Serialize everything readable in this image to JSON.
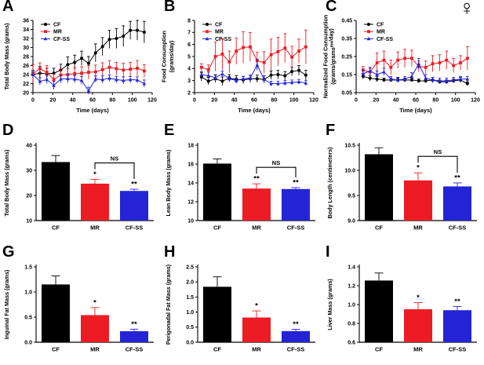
{
  "figure": {
    "sex_symbol": "♀",
    "background": "#ffffff",
    "colors": {
      "cf": "#000000",
      "mr": "#ed1c24",
      "cfss": "#2424d6"
    },
    "group_labels": [
      "CF",
      "MR",
      "CF-SS"
    ]
  },
  "chart_data": [
    {
      "letter": "A",
      "type": "line",
      "name": "total-body-mass-timecourse",
      "xlabel": "Time (days)",
      "ylabel_lines": [
        [
          {
            "t": "Total Body Mass (grams)"
          }
        ]
      ],
      "xlim": [
        0,
        120
      ],
      "ylim": [
        20,
        36
      ],
      "xticks": [
        0,
        20,
        40,
        60,
        80,
        100,
        120
      ],
      "xtick_labels": [
        "0",
        "20",
        "40",
        "60",
        "80",
        "100",
        "120"
      ],
      "yticks": [
        20,
        22,
        24,
        26,
        28,
        30,
        32,
        34,
        36
      ],
      "ytick_labels": [
        "20",
        "22",
        "24",
        "26",
        "28",
        "30",
        "32",
        "34",
        "36"
      ],
      "x": [
        0,
        7,
        14,
        21,
        28,
        35,
        42,
        49,
        56,
        63,
        70,
        77,
        84,
        91,
        98,
        105,
        112
      ],
      "series": [
        {
          "name": "CF",
          "color_key": "cf",
          "marker": "circle",
          "values": [
            24.0,
            24.3,
            24.2,
            24.3,
            25.0,
            26.2,
            26.7,
            27.6,
            26.5,
            28.8,
            30.2,
            31.8,
            32.0,
            32.5,
            33.8,
            33.8,
            33.4
          ],
          "errors": [
            0.9,
            1.5,
            1.2,
            1.1,
            1.3,
            1.7,
            1.6,
            1.6,
            1.5,
            2.0,
            2.0,
            2.0,
            2.2,
            2.3,
            2.0,
            2.2,
            2.4
          ]
        },
        {
          "name": "MR",
          "color_key": "mr",
          "marker": "square",
          "values": [
            24.2,
            25.3,
            24.5,
            22.9,
            23.9,
            24.0,
            24.2,
            24.3,
            24.5,
            24.6,
            25.1,
            25.6,
            25.3,
            25.0,
            25.2,
            25.4,
            24.8
          ],
          "errors": [
            2.0,
            1.3,
            1.5,
            1.2,
            1.4,
            1.3,
            1.3,
            1.4,
            1.5,
            1.5,
            1.5,
            1.5,
            1.4,
            1.5,
            1.5,
            1.7,
            1.4
          ]
        },
        {
          "name": "CF-SS",
          "color_key": "cfss",
          "marker": "triangle",
          "values": [
            24.0,
            22.5,
            22.9,
            21.6,
            23.0,
            23.1,
            23.0,
            22.7,
            20.4,
            23.0,
            22.9,
            23.2,
            22.9,
            22.7,
            22.9,
            22.8,
            22.0
          ],
          "errors": [
            0.7,
            0.8,
            0.9,
            0.9,
            0.8,
            0.9,
            0.8,
            0.9,
            0.8,
            0.7,
            0.8,
            0.7,
            0.7,
            0.8,
            0.7,
            0.7,
            0.8
          ]
        }
      ]
    },
    {
      "letter": "B",
      "type": "line",
      "name": "food-consumption-timecourse",
      "xlabel": "Time (days)",
      "ylabel_lines": [
        [
          {
            "t": "Food Consumption"
          }
        ],
        [
          {
            "t": "(grams/day)"
          }
        ]
      ],
      "xlim": [
        0,
        120
      ],
      "ylim": [
        2,
        8
      ],
      "xticks": [
        0,
        20,
        40,
        60,
        80,
        100,
        120
      ],
      "xtick_labels": [
        "0",
        "20",
        "40",
        "60",
        "80",
        "100",
        "120"
      ],
      "yticks": [
        2,
        3,
        4,
        5,
        6,
        7,
        8
      ],
      "ytick_labels": [
        "2",
        "3",
        "4",
        "5",
        "6",
        "7",
        "8"
      ],
      "x": [
        7,
        14,
        21,
        28,
        35,
        42,
        49,
        56,
        63,
        70,
        77,
        84,
        91,
        98,
        105,
        112
      ],
      "series": [
        {
          "name": "CF",
          "color_key": "cf",
          "marker": "circle",
          "values": [
            3.3,
            2.95,
            3.15,
            2.95,
            3.2,
            3.1,
            3.05,
            3.15,
            3.15,
            3.1,
            3.45,
            3.5,
            3.4,
            3.75,
            3.85,
            3.45
          ],
          "errors": [
            0.35,
            0.3,
            0.3,
            0.35,
            0.3,
            0.3,
            0.3,
            0.3,
            0.3,
            0.3,
            0.35,
            0.35,
            0.35,
            0.35,
            0.4,
            0.4
          ]
        },
        {
          "name": "MR",
          "color_key": "mr",
          "marker": "square",
          "values": [
            4.1,
            3.9,
            5.0,
            5.2,
            4.55,
            5.45,
            5.75,
            5.8,
            4.65,
            4.5,
            5.15,
            5.4,
            5.7,
            4.95,
            5.45,
            5.8
          ],
          "errors": [
            0.3,
            0.4,
            1.2,
            1.3,
            0.9,
            1.1,
            1.3,
            1.2,
            0.7,
            0.9,
            1.3,
            1.2,
            1.2,
            0.9,
            1.0,
            1.4
          ]
        },
        {
          "name": "CF-SS",
          "color_key": "cfss",
          "marker": "triangle",
          "values": [
            3.5,
            3.4,
            3.25,
            3.55,
            3.15,
            3.0,
            3.15,
            3.2,
            4.3,
            3.1,
            2.75,
            2.75,
            2.8,
            2.85,
            2.9,
            2.8
          ],
          "errors": [
            0.25,
            0.3,
            0.25,
            0.25,
            0.2,
            0.2,
            0.2,
            0.25,
            0.45,
            0.3,
            0.2,
            0.2,
            0.2,
            0.2,
            0.2,
            0.2
          ]
        }
      ]
    },
    {
      "letter": "C",
      "type": "line",
      "name": "normalized-food-consumption-timecourse",
      "xlabel": "Time (days)",
      "ylabel_lines": [
        [
          {
            "t": "Normalized Food Consumption"
          }
        ],
        [
          {
            "t": "(grams/grams"
          },
          {
            "t": "BM",
            "sup": true
          },
          {
            "t": "/day)"
          }
        ]
      ],
      "xlim": [
        0,
        120
      ],
      "ylim": [
        0.05,
        0.45
      ],
      "xticks": [
        0,
        20,
        40,
        60,
        80,
        100,
        120
      ],
      "xtick_labels": [
        "0",
        "20",
        "40",
        "60",
        "80",
        "100",
        "120"
      ],
      "yticks": [
        0.05,
        0.15,
        0.25,
        0.35,
        0.45
      ],
      "ytick_labels": [
        "0.05",
        "0.15",
        "0.25",
        "0.35",
        "0.45"
      ],
      "x": [
        7,
        14,
        21,
        28,
        35,
        42,
        49,
        56,
        63,
        70,
        77,
        84,
        91,
        98,
        105,
        112
      ],
      "series": [
        {
          "name": "CF",
          "color_key": "cf",
          "marker": "circle",
          "values": [
            0.14,
            0.13,
            0.125,
            0.12,
            0.12,
            0.12,
            0.12,
            0.12,
            0.115,
            0.115,
            0.12,
            0.11,
            0.11,
            0.115,
            0.12,
            0.1
          ],
          "errors": [
            0.015,
            0.015,
            0.015,
            0.01,
            0.01,
            0.01,
            0.01,
            0.01,
            0.01,
            0.01,
            0.015,
            0.01,
            0.01,
            0.01,
            0.015,
            0.01
          ]
        },
        {
          "name": "MR",
          "color_key": "mr",
          "marker": "square",
          "values": [
            0.175,
            0.165,
            0.215,
            0.23,
            0.19,
            0.23,
            0.24,
            0.24,
            0.195,
            0.19,
            0.21,
            0.215,
            0.23,
            0.2,
            0.215,
            0.24
          ],
          "errors": [
            0.02,
            0.02,
            0.055,
            0.05,
            0.04,
            0.045,
            0.05,
            0.045,
            0.03,
            0.035,
            0.045,
            0.045,
            0.05,
            0.04,
            0.04,
            0.065
          ]
        },
        {
          "name": "CF-SS",
          "color_key": "cfss",
          "marker": "triangle",
          "values": [
            0.155,
            0.17,
            0.15,
            0.165,
            0.125,
            0.12,
            0.125,
            0.14,
            0.21,
            0.13,
            0.12,
            0.115,
            0.115,
            0.12,
            0.125,
            0.125
          ],
          "errors": [
            0.02,
            0.02,
            0.02,
            0.02,
            0.015,
            0.015,
            0.015,
            0.02,
            0.03,
            0.02,
            0.015,
            0.015,
            0.015,
            0.015,
            0.015,
            0.015
          ]
        }
      ]
    },
    {
      "letter": "D",
      "type": "bar",
      "name": "total-body-mass-bar",
      "ylabel_lines": [
        [
          {
            "t": "Total Body Mass (grams)"
          }
        ]
      ],
      "ylim": [
        10,
        40
      ],
      "yticks": [
        10,
        20,
        30,
        40
      ],
      "ytick_labels": [
        "10",
        "20",
        "30",
        "40"
      ],
      "categories": [
        "CF",
        "MR",
        "CF-SS"
      ],
      "color_keys": [
        "cf",
        "mr",
        "cfss"
      ],
      "values": [
        33.3,
        24.7,
        21.8
      ],
      "errors": [
        2.6,
        1.7,
        0.7
      ],
      "sig": [
        "",
        "*",
        "**"
      ],
      "ns_bracket": {
        "from": 1,
        "to": 2,
        "label": "NS"
      }
    },
    {
      "letter": "E",
      "type": "bar",
      "name": "lean-body-mass-bar",
      "ylabel_lines": [
        [
          {
            "t": "Lean Body Mass (grams)"
          }
        ]
      ],
      "ylim": [
        10,
        18
      ],
      "yticks": [
        10,
        12,
        14,
        16,
        18
      ],
      "ytick_labels": [
        "10",
        "12",
        "14",
        "16",
        "18"
      ],
      "categories": [
        "CF",
        "MR",
        "CF-SS"
      ],
      "color_keys": [
        "cf",
        "mr",
        "cfss"
      ],
      "values": [
        16.05,
        13.4,
        13.35
      ],
      "errors": [
        0.5,
        0.5,
        0.15
      ],
      "sig": [
        "",
        "**",
        "**"
      ],
      "ns_bracket": {
        "from": 1,
        "to": 2,
        "label": "NS"
      }
    },
    {
      "letter": "F",
      "type": "bar",
      "name": "body-length-bar",
      "ylabel_lines": [
        [
          {
            "t": "Body Length (centimeters)"
          }
        ]
      ],
      "ylim": [
        9.0,
        10.5
      ],
      "yticks": [
        9.0,
        9.5,
        10.0,
        10.5
      ],
      "ytick_labels": [
        "9.0",
        "9.5",
        "10.0",
        "10.5"
      ],
      "categories": [
        "CF",
        "MR",
        "CF-SS"
      ],
      "color_keys": [
        "cf",
        "mr",
        "cfss"
      ],
      "values": [
        10.32,
        9.8,
        9.68
      ],
      "errors": [
        0.13,
        0.15,
        0.07
      ],
      "sig": [
        "",
        "*",
        "**"
      ],
      "ns_bracket": {
        "from": 1,
        "to": 2,
        "label": "NS"
      }
    },
    {
      "letter": "G",
      "type": "bar",
      "name": "inguinal-fat-mass-bar",
      "ylabel_lines": [
        [
          {
            "t": "Inguinal Fat Mass (grams)"
          }
        ]
      ],
      "ylim": [
        0,
        1.5
      ],
      "yticks": [
        0,
        0.5,
        1.0,
        1.5
      ],
      "ytick_labels": [
        "0.0",
        "0.5",
        "1.0",
        "1.5"
      ],
      "categories": [
        "CF",
        "MR",
        "CF-SS"
      ],
      "color_keys": [
        "cf",
        "mr",
        "cfss"
      ],
      "values": [
        1.15,
        0.54,
        0.22
      ],
      "errors": [
        0.17,
        0.15,
        0.04
      ],
      "sig": [
        "",
        "*",
        "**"
      ],
      "ns_bracket": null
    },
    {
      "letter": "H",
      "type": "bar",
      "name": "perigonadal-fat-mass-bar",
      "ylabel_lines": [
        [
          {
            "t": "Perigonadal Fat Mass (grams)"
          }
        ]
      ],
      "ylim": [
        0,
        2.5
      ],
      "yticks": [
        0,
        0.5,
        1.0,
        1.5,
        2.0,
        2.5
      ],
      "ytick_labels": [
        "0.0",
        "0.5",
        "1.0",
        "1.5",
        "2.0",
        "2.5"
      ],
      "categories": [
        "CF",
        "MR",
        "CF-SS"
      ],
      "color_keys": [
        "cf",
        "mr",
        "cfss"
      ],
      "values": [
        1.84,
        0.82,
        0.37
      ],
      "errors": [
        0.33,
        0.22,
        0.06
      ],
      "sig": [
        "",
        "*",
        "**"
      ],
      "ns_bracket": null
    },
    {
      "letter": "I",
      "type": "bar",
      "name": "liver-mass-bar",
      "ylabel_lines": [
        [
          {
            "t": "Liver Mass (grams)"
          }
        ]
      ],
      "ylim": [
        0.6,
        1.4
      ],
      "yticks": [
        0.6,
        0.8,
        1.0,
        1.2,
        1.4
      ],
      "ytick_labels": [
        "0.6",
        "0.8",
        "1.0",
        "1.2",
        "1.4"
      ],
      "categories": [
        "CF",
        "MR",
        "CF-SS"
      ],
      "color_keys": [
        "cf",
        "mr",
        "cfss"
      ],
      "values": [
        1.255,
        0.95,
        0.94
      ],
      "errors": [
        0.08,
        0.07,
        0.04
      ],
      "sig": [
        "",
        "*",
        "**"
      ],
      "ns_bracket": null
    }
  ]
}
